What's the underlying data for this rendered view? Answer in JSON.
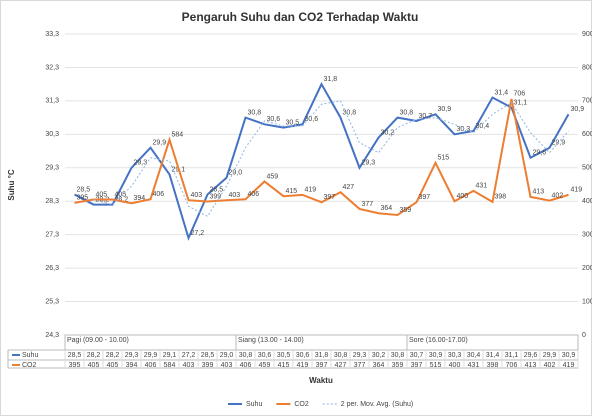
{
  "chart_data": {
    "type": "line",
    "title": "Pengaruh Suhu dan CO2 Terhadap Waktu",
    "ylabel": "Suhu °C",
    "xlabel": "Waktu",
    "categories": [
      null,
      null,
      null,
      null,
      null,
      null,
      null,
      null,
      null,
      null,
      null,
      null,
      null,
      null,
      null,
      null,
      null,
      null,
      null,
      null,
      null,
      null,
      null,
      null,
      null,
      null,
      null
    ],
    "groups": [
      {
        "label": "Pagi (09.00 - 10.00)",
        "start": 0,
        "span": 9
      },
      {
        "label": "Siang (13.00 - 14.00)",
        "start": 9,
        "span": 9
      },
      {
        "label": "Sore (16.00-17.00)",
        "start": 18,
        "span": 9
      }
    ],
    "ylim": [
      24.3,
      33.3
    ],
    "yticks": [
      {
        "value": 24.3,
        "label": "24,3"
      },
      {
        "value": 25.3,
        "label": "25,3"
      },
      {
        "value": 26.3,
        "label": "26,3"
      },
      {
        "value": 27.3,
        "label": "27,3"
      },
      {
        "value": 28.3,
        "label": "28,3"
      },
      {
        "value": 29.3,
        "label": "29,3"
      },
      {
        "value": 30.3,
        "label": "30,3"
      },
      {
        "value": 31.3,
        "label": "31,3"
      },
      {
        "value": 32.3,
        "label": "32,3"
      },
      {
        "value": 33.3,
        "label": "33,3"
      }
    ],
    "y2lim": [
      0,
      900
    ],
    "y2ticks": [
      0,
      100,
      200,
      300,
      400,
      500,
      600,
      700,
      800,
      900
    ],
    "grid": true,
    "legend": "bottom",
    "series": [
      {
        "name": "Suhu",
        "color": "#4472c4",
        "values": [
          28.5,
          28.2,
          28.2,
          29.3,
          29.9,
          29.1,
          27.2,
          28.5,
          29.0,
          30.8,
          30.6,
          30.5,
          30.6,
          31.8,
          30.8,
          29.3,
          30.2,
          30.8,
          30.7,
          30.9,
          30.3,
          30.4,
          31.4,
          31.1,
          29.6,
          29.9,
          30.9
        ],
        "value_labels": [
          "28,5",
          "28,2",
          "28,2",
          "29,3",
          "29,9",
          "29,1",
          "27,2",
          "28,5",
          "29,0",
          "30,8",
          "30,6",
          "30,5",
          "30,6",
          "31,8",
          "30,8",
          "29,3",
          "30,2",
          "30,8",
          "30,7",
          "30,9",
          "30,3",
          "30,4",
          "31,4",
          "31,1",
          "29,6",
          "29,9",
          "30,9"
        ]
      },
      {
        "name": "CO2",
        "color": "#ed7d31",
        "axis": "y2",
        "values": [
          395,
          405,
          405,
          394,
          406,
          584,
          403,
          399,
          403,
          406,
          459,
          415,
          419,
          397,
          427,
          377,
          364,
          359,
          397,
          515,
          400,
          431,
          398,
          706,
          413,
          402,
          419
        ]
      },
      {
        "name": "2 per. Mov. Avg. (Suhu)",
        "color": "#8fb4e3",
        "dashed": true,
        "values": [
          null,
          28.35,
          28.2,
          28.75,
          29.6,
          29.5,
          28.15,
          27.85,
          28.75,
          29.9,
          30.7,
          30.55,
          30.55,
          31.2,
          31.3,
          30.05,
          29.75,
          30.5,
          30.75,
          30.8,
          30.6,
          30.35,
          30.9,
          31.25,
          30.35,
          29.75,
          30.4
        ]
      }
    ]
  }
}
